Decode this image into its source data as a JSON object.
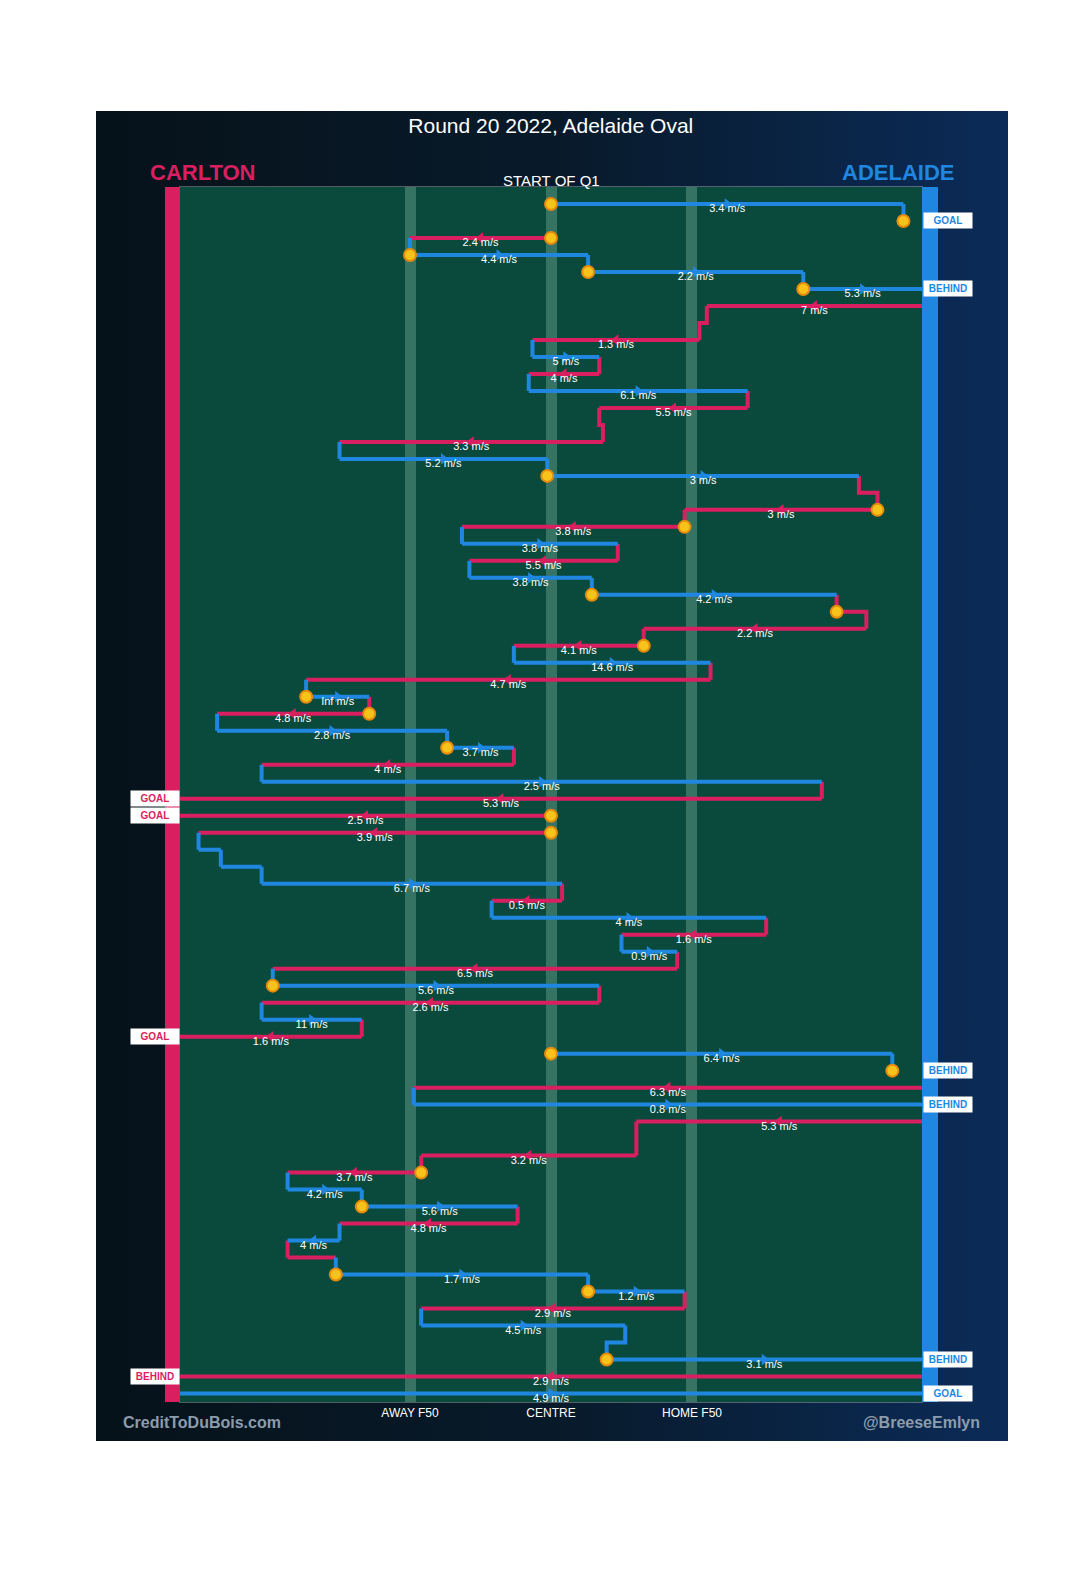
{
  "chart_data": {
    "type": "possession_chain",
    "title": "Round 20 2022, Adelaide Oval",
    "subtitle": "START OF Q1",
    "series": [
      {
        "name": "CARLTON",
        "color": "#d91f5f"
      },
      {
        "name": "ADELAIDE",
        "color": "#1f87e0"
      }
    ],
    "xlim": [
      0,
      100
    ],
    "xticks": [
      {
        "value": 31,
        "label": "AWAY F50"
      },
      {
        "value": 50,
        "label": "CENTRE"
      },
      {
        "value": 69,
        "label": "HOME F50"
      }
    ],
    "ylim": [
      -1,
      70.5
    ],
    "grid": true,
    "tick_labels": "x",
    "chains": [
      {
        "segments": [
          {
            "team": "ADELAIDE",
            "row": 0,
            "x0": 50,
            "x1": 97.5,
            "value": 3.4,
            "value_label": "3.4 m/s"
          }
        ],
        "result": {
          "team": "ADELAIDE",
          "row": 1,
          "label": "GOAL"
        }
      },
      {
        "segments": [
          {
            "team": "CARLTON",
            "row": 2,
            "x0": 50,
            "x1": 31,
            "value": 2.4,
            "value_label": "2.4 m/s"
          },
          {
            "team": "ADELAIDE",
            "row": 3,
            "x0": 31,
            "x1": 55,
            "value": 4.4,
            "value_label": "4.4 m/s"
          },
          {
            "team": "ADELAIDE",
            "row": 4,
            "x0": 55,
            "x1": 84,
            "value": 2.2,
            "value_label": "2.2 m/s"
          },
          {
            "team": "ADELAIDE",
            "row": 5,
            "x0": 84,
            "x1": 100,
            "value": 5.3,
            "value_label": "5.3 m/s"
          }
        ],
        "result": {
          "team": "ADELAIDE",
          "row": 5,
          "label": "BEHIND"
        }
      },
      {
        "segments": [
          {
            "team": "CARLTON",
            "row": 6,
            "x0": 100,
            "x1": 71,
            "value": 7,
            "value_label": "7 m/s"
          },
          {
            "team": "CARLTON",
            "row": 8,
            "x0": 70,
            "x1": 47.5,
            "value": 1.3,
            "value_label": "1.3 m/s"
          },
          {
            "team": "ADELAIDE",
            "row": 9,
            "x0": 47.5,
            "x1": 56.5,
            "value": 5,
            "value_label": "5 m/s"
          },
          {
            "team": "CARLTON",
            "row": 10,
            "x0": 56.5,
            "x1": 47,
            "value": 4,
            "value_label": "4 m/s"
          },
          {
            "team": "ADELAIDE",
            "row": 11,
            "x0": 47,
            "x1": 76.5,
            "value": 6.1,
            "value_label": "6.1 m/s"
          },
          {
            "team": "CARLTON",
            "row": 12,
            "x0": 76.5,
            "x1": 56.5,
            "value": 5.5,
            "value_label": "5.5 m/s"
          },
          {
            "team": "CARLTON",
            "row": 14,
            "x0": 57,
            "x1": 21.5,
            "value": 3.3,
            "value_label": "3.3 m/s"
          },
          {
            "team": "ADELAIDE",
            "row": 15,
            "x0": 21.5,
            "x1": 49.5,
            "value": 5.2,
            "value_label": "5.2 m/s"
          },
          {
            "team": "ADELAIDE",
            "row": 16,
            "x0": 49.5,
            "x1": 91.5,
            "value": 3,
            "value_label": "3 m/s"
          },
          {
            "team": "CARLTON",
            "row": 18,
            "x0": 94,
            "x1": 68,
            "value": 3,
            "value_label": "3 m/s"
          },
          {
            "team": "CARLTON",
            "row": 19,
            "x0": 68,
            "x1": 38,
            "value": 3.8,
            "value_label": "3.8 m/s"
          },
          {
            "team": "ADELAIDE",
            "row": 20,
            "x0": 38,
            "x1": 59,
            "value": 3.8,
            "value_label": "3.8 m/s"
          },
          {
            "team": "CARLTON",
            "row": 21,
            "x0": 59,
            "x1": 39,
            "value": 5.5,
            "value_label": "5.5 m/s"
          },
          {
            "team": "ADELAIDE",
            "row": 22,
            "x0": 39,
            "x1": 55.5,
            "value": 3.8,
            "value_label": "3.8 m/s"
          },
          {
            "team": "ADELAIDE",
            "row": 23,
            "x0": 55.5,
            "x1": 88.5,
            "value": 4.2,
            "value_label": "4.2 m/s"
          },
          {
            "team": "CARLTON",
            "row": 25,
            "x0": 92.5,
            "x1": 62.5,
            "value": 2.2,
            "value_label": "2.2 m/s"
          },
          {
            "team": "CARLTON",
            "row": 26,
            "x0": 62.5,
            "x1": 45,
            "value": 4.1,
            "value_label": "4.1 m/s"
          },
          {
            "team": "ADELAIDE",
            "row": 27,
            "x0": 45,
            "x1": 71.5,
            "value": 14.6,
            "value_label": "14.6 m/s"
          },
          {
            "team": "CARLTON",
            "row": 28,
            "x0": 71.5,
            "x1": 17,
            "value": 4.7,
            "value_label": "4.7 m/s"
          },
          {
            "team": "ADELAIDE",
            "row": 29,
            "x0": 17,
            "x1": 25.5,
            "value": null,
            "value_label": "Inf m/s"
          },
          {
            "team": "CARLTON",
            "row": 30,
            "x0": 25.5,
            "x1": 5,
            "value": 4.8,
            "value_label": "4.8 m/s"
          },
          {
            "team": "ADELAIDE",
            "row": 31,
            "x0": 5,
            "x1": 36,
            "value": 2.8,
            "value_label": "2.8 m/s"
          },
          {
            "team": "ADELAIDE",
            "row": 32,
            "x0": 36,
            "x1": 45,
            "value": 3.7,
            "value_label": "3.7 m/s"
          },
          {
            "team": "CARLTON",
            "row": 33,
            "x0": 45,
            "x1": 11,
            "value": 4,
            "value_label": "4 m/s"
          },
          {
            "team": "ADELAIDE",
            "row": 34,
            "x0": 11,
            "x1": 86.5,
            "value": 2.5,
            "value_label": "2.5 m/s"
          },
          {
            "team": "CARLTON",
            "row": 35,
            "x0": 86.5,
            "x1": 0,
            "value": 5.3,
            "value_label": "5.3 m/s"
          }
        ],
        "result": {
          "team": "CARLTON",
          "row": 35,
          "label": "GOAL"
        }
      },
      {
        "segments": [
          {
            "team": "CARLTON",
            "row": 36,
            "x0": 50,
            "x1": 0,
            "value": 2.5,
            "value_label": "2.5 m/s"
          }
        ],
        "result": {
          "team": "CARLTON",
          "row": 36,
          "label": "GOAL"
        }
      },
      {
        "segments": [
          {
            "team": "CARLTON",
            "row": 37,
            "x0": 50,
            "x1": 2.5,
            "value": 3.9,
            "value_label": "3.9 m/s"
          },
          {
            "team": "ADELAIDE",
            "row": 38,
            "x0": 2.5,
            "x1": 5.5,
            "value": null
          },
          {
            "team": "ADELAIDE",
            "row": 39,
            "x0": 5.5,
            "x1": 11,
            "value": null
          },
          {
            "team": "ADELAIDE",
            "row": 40,
            "x0": 11,
            "x1": 51.5,
            "value": 6.7,
            "value_label": "6.7 m/s"
          },
          {
            "team": "CARLTON",
            "row": 41,
            "x0": 51.5,
            "x1": 42,
            "value": 0.5,
            "value_label": "0.5 m/s"
          },
          {
            "team": "ADELAIDE",
            "row": 42,
            "x0": 42,
            "x1": 79,
            "value": 4,
            "value_label": "4 m/s"
          },
          {
            "team": "CARLTON",
            "row": 43,
            "x0": 79,
            "x1": 59.5,
            "value": 1.6,
            "value_label": "1.6 m/s"
          },
          {
            "team": "ADELAIDE",
            "row": 44,
            "x0": 59.5,
            "x1": 67,
            "value": 0.9,
            "value_label": "0.9 m/s"
          },
          {
            "team": "CARLTON",
            "row": 45,
            "x0": 67,
            "x1": 12.5,
            "value": 6.5,
            "value_label": "6.5 m/s"
          },
          {
            "team": "ADELAIDE",
            "row": 46,
            "x0": 12.5,
            "x1": 56.5,
            "value": 5.6,
            "value_label": "5.6 m/s"
          },
          {
            "team": "CARLTON",
            "row": 47,
            "x0": 56.5,
            "x1": 11,
            "value": 2.6,
            "value_label": "2.6 m/s"
          },
          {
            "team": "ADELAIDE",
            "row": 48,
            "x0": 11,
            "x1": 24.5,
            "value": 11,
            "value_label": "11 m/s"
          },
          {
            "team": "CARLTON",
            "row": 49,
            "x0": 24.5,
            "x1": 0,
            "value": 1.6,
            "value_label": "1.6 m/s"
          }
        ],
        "result": {
          "team": "CARLTON",
          "row": 49,
          "label": "GOAL"
        }
      },
      {
        "segments": [
          {
            "team": "ADELAIDE",
            "row": 50,
            "x0": 50,
            "x1": 96,
            "value": 6.4,
            "value_label": "6.4 m/s"
          }
        ],
        "result": {
          "team": "ADELAIDE",
          "row": 51,
          "label": "BEHIND"
        }
      },
      {
        "segments": [
          {
            "team": "CARLTON",
            "row": 52,
            "x0": 100,
            "x1": 31.5,
            "value": 6.3,
            "value_label": "6.3 m/s"
          },
          {
            "team": "ADELAIDE",
            "row": 53,
            "x0": 31.5,
            "x1": 100,
            "value": 0.8,
            "value_label": "0.8 m/s"
          }
        ],
        "result": {
          "team": "ADELAIDE",
          "row": 53,
          "label": "BEHIND"
        }
      },
      {
        "segments": [
          {
            "team": "CARLTON",
            "row": 54,
            "x0": 100,
            "x1": 61.5,
            "value": 5.3,
            "value_label": "5.3 m/s"
          },
          {
            "team": "CARLTON",
            "row": 56,
            "x0": 61.5,
            "x1": 32.5,
            "value": 3.2,
            "value_label": "3.2 m/s"
          },
          {
            "team": "CARLTON",
            "row": 57,
            "x0": 32.5,
            "x1": 14.5,
            "value": 3.7,
            "value_label": "3.7 m/s"
          },
          {
            "team": "ADELAIDE",
            "row": 58,
            "x0": 14.5,
            "x1": 24.5,
            "value": 4.2,
            "value_label": "4.2 m/s"
          },
          {
            "team": "ADELAIDE",
            "row": 59,
            "x0": 24.5,
            "x1": 45.5,
            "value": 5.6,
            "value_label": "5.6 m/s"
          },
          {
            "team": "CARLTON",
            "row": 60,
            "x0": 45.5,
            "x1": 21.5,
            "value": 4.8,
            "value_label": "4.8 m/s"
          },
          {
            "team": "ADELAIDE",
            "row": 61,
            "x0": 21.5,
            "x1": 14.5,
            "value": 4,
            "value_label": "4 m/s"
          },
          {
            "team": "CARLTON",
            "row": 62,
            "x0": 14.5,
            "x1": 21,
            "value": null
          },
          {
            "team": "ADELAIDE",
            "row": 63,
            "x0": 21,
            "x1": 55,
            "value": 1.7,
            "value_label": "1.7 m/s"
          },
          {
            "team": "ADELAIDE",
            "row": 64,
            "x0": 55,
            "x1": 68,
            "value": 1.2,
            "value_label": "1.2 m/s"
          },
          {
            "team": "CARLTON",
            "row": 65,
            "x0": 68,
            "x1": 32.5,
            "value": 2.9,
            "value_label": "2.9 m/s"
          },
          {
            "team": "ADELAIDE",
            "row": 66,
            "x0": 32.5,
            "x1": 60,
            "value": 4.5,
            "value_label": "4.5 m/s"
          },
          {
            "team": "ADELAIDE",
            "row": 68,
            "x0": 57.5,
            "x1": 100,
            "value": 3.1,
            "value_label": "3.1 m/s"
          }
        ],
        "result": {
          "team": "ADELAIDE",
          "row": 68,
          "label": "BEHIND"
        }
      },
      {
        "segments": [
          {
            "team": "CARLTON",
            "row": 69,
            "x0": 100,
            "x1": 0,
            "value": 2.9,
            "value_label": "2.9 m/s"
          }
        ],
        "result": {
          "team": "CARLTON",
          "row": 69,
          "label": "BEHIND"
        }
      },
      {
        "segments": [
          {
            "team": "ADELAIDE",
            "row": 70,
            "x0": 0,
            "x1": 100,
            "value": 4.9,
            "value_label": "4.9 m/s"
          }
        ],
        "result": {
          "team": "ADELAIDE",
          "row": 70,
          "label": "GOAL"
        }
      }
    ],
    "stoppages": [
      {
        "x": 50,
        "row": 0
      },
      {
        "x": 97.5,
        "row": 1
      },
      {
        "x": 50,
        "row": 2
      },
      {
        "x": 31,
        "row": 3
      },
      {
        "x": 55,
        "row": 4
      },
      {
        "x": 84,
        "row": 5
      },
      {
        "x": 49.5,
        "row": 16
      },
      {
        "x": 94,
        "row": 18
      },
      {
        "x": 68,
        "row": 19
      },
      {
        "x": 55.5,
        "row": 23
      },
      {
        "x": 88.5,
        "row": 24
      },
      {
        "x": 62.5,
        "row": 26
      },
      {
        "x": 17,
        "row": 29
      },
      {
        "x": 25.5,
        "row": 30
      },
      {
        "x": 36,
        "row": 32
      },
      {
        "x": 50,
        "row": 36
      },
      {
        "x": 50,
        "row": 37
      },
      {
        "x": 12.5,
        "row": 46
      },
      {
        "x": 50,
        "row": 50
      },
      {
        "x": 96,
        "row": 51
      },
      {
        "x": 32.5,
        "row": 57
      },
      {
        "x": 24.5,
        "row": 59
      },
      {
        "x": 21,
        "row": 63
      },
      {
        "x": 55,
        "row": 64
      },
      {
        "x": 57.5,
        "row": 68
      }
    ],
    "credits": [
      "CreditToDuBois.com",
      "@BreeseEmlyn"
    ]
  }
}
